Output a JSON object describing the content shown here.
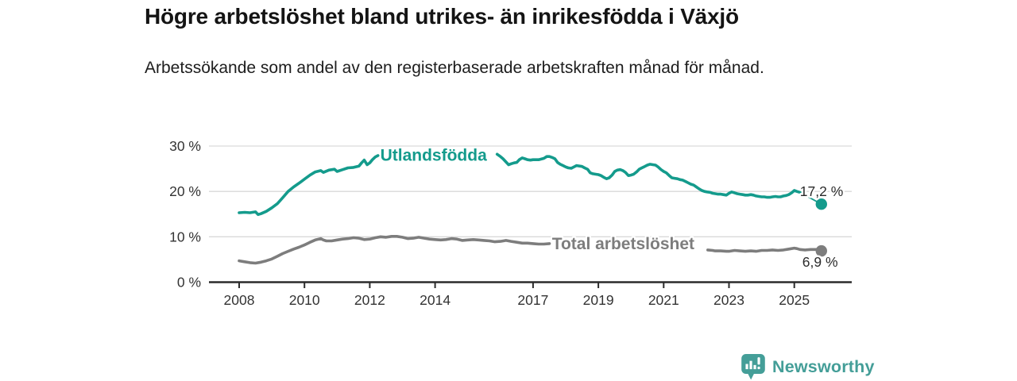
{
  "header": {
    "title": "Högre arbetslöshet bland utrikes- än inrikesfödda i Växjö",
    "subtitle": "Arbetssökande som andel av den registerbaserade arbetskraften månad för månad."
  },
  "footer": {
    "brand": "Newsworthy",
    "brand_icon": "bar-chart-speech-bubble-icon"
  },
  "colors": {
    "teal": "#149b8c",
    "gray": "#7d7d7d",
    "grid": "#d9d9d9",
    "axis": "#2b2b2b",
    "tick_text": "#333333",
    "value_text": "#2b2b2b",
    "brand_teal": "#449e98",
    "background": "#ffffff"
  },
  "chart_data": {
    "type": "line",
    "title": "Högre arbetslöshet bland utrikes- än inrikesfödda i Växjö",
    "subtitle": "Arbetssökande som andel av den registerbaserade arbetskraften månad för månad.",
    "unit": "%",
    "grid": "horizontal",
    "legend_position": "inline-labels",
    "x_axis": {
      "range": [
        2007.7,
        2026.2
      ],
      "ticks": [
        2008,
        2010,
        2012,
        2014,
        2017,
        2019,
        2021,
        2023,
        2025
      ]
    },
    "y_axis": {
      "range": [
        0,
        30
      ],
      "ticks": [
        0,
        10,
        20,
        30
      ],
      "tick_format": "{v} %"
    },
    "series": [
      {
        "id": "utlandsfodda",
        "name": "Utlandsfödda",
        "color_key": "teal",
        "label_anchor": [
          2012.32,
          28.05
        ],
        "end_x": 2025.83,
        "end_value": 17.2,
        "end_label": "17,2 %",
        "end_label_pos": "above",
        "connector": [
          [
            2025.25,
            19.5
          ],
          [
            2025.83,
            17.2
          ]
        ],
        "segments": [
          [
            [
              2008.0,
              15.3
            ],
            [
              2008.17,
              15.4
            ],
            [
              2008.33,
              15.3
            ],
            [
              2008.5,
              15.5
            ],
            [
              2008.58,
              14.9
            ],
            [
              2008.67,
              15.1
            ],
            [
              2008.83,
              15.6
            ],
            [
              2009.0,
              16.4
            ],
            [
              2009.17,
              17.3
            ],
            [
              2009.33,
              18.6
            ],
            [
              2009.5,
              20.0
            ],
            [
              2009.67,
              21.0
            ],
            [
              2009.83,
              21.8
            ],
            [
              2010.0,
              22.7
            ],
            [
              2010.17,
              23.6
            ],
            [
              2010.33,
              24.3
            ],
            [
              2010.5,
              24.6
            ],
            [
              2010.58,
              24.2
            ],
            [
              2010.75,
              24.7
            ],
            [
              2010.92,
              24.9
            ],
            [
              2011.0,
              24.4
            ],
            [
              2011.17,
              24.8
            ],
            [
              2011.33,
              25.2
            ],
            [
              2011.5,
              25.3
            ],
            [
              2011.67,
              25.6
            ],
            [
              2011.75,
              26.3
            ],
            [
              2011.83,
              26.9
            ],
            [
              2011.92,
              25.9
            ],
            [
              2012.0,
              26.3
            ],
            [
              2012.08,
              27.0
            ],
            [
              2012.17,
              27.6
            ],
            [
              2012.25,
              27.9
            ]
          ],
          [
            [
              2015.9,
              28.2
            ],
            [
              2016.0,
              27.7
            ],
            [
              2016.08,
              27.2
            ],
            [
              2016.17,
              26.5
            ],
            [
              2016.25,
              25.9
            ],
            [
              2016.33,
              26.1
            ],
            [
              2016.42,
              26.3
            ],
            [
              2016.5,
              26.4
            ],
            [
              2016.58,
              27.0
            ],
            [
              2016.67,
              27.4
            ],
            [
              2016.75,
              27.2
            ],
            [
              2016.83,
              27.0
            ],
            [
              2016.92,
              26.9
            ],
            [
              2017.0,
              27.0
            ],
            [
              2017.17,
              27.0
            ],
            [
              2017.33,
              27.3
            ],
            [
              2017.42,
              27.7
            ],
            [
              2017.5,
              27.7
            ],
            [
              2017.58,
              27.5
            ],
            [
              2017.67,
              27.2
            ],
            [
              2017.75,
              26.4
            ],
            [
              2017.83,
              26.0
            ],
            [
              2017.92,
              25.7
            ],
            [
              2018.0,
              25.4
            ],
            [
              2018.08,
              25.2
            ],
            [
              2018.17,
              25.1
            ],
            [
              2018.25,
              25.4
            ],
            [
              2018.33,
              25.7
            ],
            [
              2018.42,
              25.6
            ],
            [
              2018.5,
              25.5
            ],
            [
              2018.58,
              25.2
            ],
            [
              2018.67,
              24.9
            ],
            [
              2018.75,
              24.1
            ],
            [
              2018.83,
              23.9
            ],
            [
              2018.92,
              23.8
            ],
            [
              2019.0,
              23.7
            ],
            [
              2019.08,
              23.5
            ],
            [
              2019.17,
              23.1
            ],
            [
              2019.25,
              22.8
            ],
            [
              2019.33,
              23.0
            ],
            [
              2019.42,
              23.6
            ],
            [
              2019.5,
              24.4
            ],
            [
              2019.58,
              24.7
            ],
            [
              2019.67,
              24.8
            ],
            [
              2019.75,
              24.6
            ],
            [
              2019.83,
              24.2
            ],
            [
              2019.92,
              23.5
            ],
            [
              2020.0,
              23.6
            ],
            [
              2020.08,
              23.8
            ],
            [
              2020.17,
              24.3
            ],
            [
              2020.25,
              24.9
            ],
            [
              2020.33,
              25.2
            ],
            [
              2020.42,
              25.5
            ],
            [
              2020.5,
              25.8
            ],
            [
              2020.58,
              26.0
            ],
            [
              2020.67,
              25.9
            ],
            [
              2020.75,
              25.8
            ],
            [
              2020.83,
              25.4
            ],
            [
              2020.92,
              24.8
            ],
            [
              2021.0,
              24.4
            ],
            [
              2021.08,
              24.1
            ],
            [
              2021.17,
              23.5
            ],
            [
              2021.25,
              23.0
            ],
            [
              2021.33,
              22.9
            ],
            [
              2021.42,
              22.8
            ],
            [
              2021.5,
              22.6
            ],
            [
              2021.58,
              22.5
            ],
            [
              2021.67,
              22.2
            ],
            [
              2021.75,
              21.9
            ],
            [
              2021.83,
              21.6
            ],
            [
              2021.92,
              21.4
            ],
            [
              2022.0,
              21.0
            ],
            [
              2022.08,
              20.6
            ],
            [
              2022.17,
              20.2
            ],
            [
              2022.25,
              20.0
            ],
            [
              2022.33,
              19.9
            ],
            [
              2022.42,
              19.8
            ],
            [
              2022.5,
              19.6
            ],
            [
              2022.58,
              19.5
            ],
            [
              2022.67,
              19.4
            ],
            [
              2022.75,
              19.4
            ],
            [
              2022.83,
              19.3
            ],
            [
              2022.92,
              19.2
            ],
            [
              2023.0,
              19.6
            ],
            [
              2023.08,
              19.9
            ],
            [
              2023.17,
              19.7
            ],
            [
              2023.25,
              19.5
            ],
            [
              2023.33,
              19.4
            ],
            [
              2023.42,
              19.3
            ],
            [
              2023.5,
              19.2
            ],
            [
              2023.58,
              19.2
            ],
            [
              2023.67,
              19.3
            ],
            [
              2023.75,
              19.2
            ],
            [
              2023.83,
              19.0
            ],
            [
              2023.92,
              18.9
            ],
            [
              2024.0,
              18.8
            ],
            [
              2024.08,
              18.8
            ],
            [
              2024.17,
              18.7
            ],
            [
              2024.25,
              18.7
            ],
            [
              2024.33,
              18.8
            ],
            [
              2024.42,
              18.9
            ],
            [
              2024.5,
              18.8
            ],
            [
              2024.58,
              18.8
            ],
            [
              2024.67,
              19.0
            ],
            [
              2024.75,
              19.1
            ],
            [
              2024.83,
              19.3
            ],
            [
              2024.92,
              19.7
            ],
            [
              2025.0,
              20.2
            ],
            [
              2025.08,
              20.0
            ],
            [
              2025.17,
              19.8
            ],
            [
              2025.25,
              19.5
            ]
          ]
        ]
      },
      {
        "id": "total-arbetsloshet",
        "name": "Total arbetslöshet",
        "color_key": "gray",
        "label_anchor": [
          2017.58,
          8.55
        ],
        "end_x": 2025.83,
        "end_value": 6.9,
        "end_label": "6,9 %",
        "end_label_pos": "below",
        "connector": null,
        "segments": [
          [
            [
              2008.0,
              4.7
            ],
            [
              2008.17,
              4.5
            ],
            [
              2008.33,
              4.3
            ],
            [
              2008.5,
              4.2
            ],
            [
              2008.67,
              4.4
            ],
            [
              2008.83,
              4.7
            ],
            [
              2009.0,
              5.1
            ],
            [
              2009.17,
              5.7
            ],
            [
              2009.33,
              6.3
            ],
            [
              2009.5,
              6.8
            ],
            [
              2009.67,
              7.3
            ],
            [
              2009.83,
              7.7
            ],
            [
              2010.0,
              8.2
            ],
            [
              2010.17,
              8.8
            ],
            [
              2010.33,
              9.3
            ],
            [
              2010.5,
              9.6
            ],
            [
              2010.58,
              9.3
            ],
            [
              2010.67,
              9.1
            ],
            [
              2010.83,
              9.1
            ],
            [
              2011.0,
              9.3
            ],
            [
              2011.17,
              9.5
            ],
            [
              2011.33,
              9.6
            ],
            [
              2011.5,
              9.8
            ],
            [
              2011.67,
              9.7
            ],
            [
              2011.83,
              9.4
            ],
            [
              2012.0,
              9.5
            ],
            [
              2012.17,
              9.8
            ],
            [
              2012.33,
              10.0
            ],
            [
              2012.5,
              9.9
            ],
            [
              2012.67,
              10.1
            ],
            [
              2012.83,
              10.1
            ],
            [
              2013.0,
              9.9
            ],
            [
              2013.17,
              9.6
            ],
            [
              2013.33,
              9.7
            ],
            [
              2013.5,
              9.9
            ],
            [
              2013.67,
              9.7
            ],
            [
              2013.83,
              9.5
            ],
            [
              2014.0,
              9.4
            ],
            [
              2014.17,
              9.3
            ],
            [
              2014.33,
              9.4
            ],
            [
              2014.5,
              9.6
            ],
            [
              2014.67,
              9.5
            ],
            [
              2014.83,
              9.2
            ],
            [
              2015.0,
              9.3
            ],
            [
              2015.17,
              9.4
            ],
            [
              2015.33,
              9.3
            ],
            [
              2015.5,
              9.2
            ],
            [
              2015.67,
              9.1
            ],
            [
              2015.83,
              8.9
            ],
            [
              2016.0,
              9.0
            ],
            [
              2016.17,
              9.2
            ],
            [
              2016.33,
              9.0
            ],
            [
              2016.5,
              8.8
            ],
            [
              2016.67,
              8.6
            ],
            [
              2016.83,
              8.6
            ],
            [
              2017.0,
              8.5
            ],
            [
              2017.17,
              8.4
            ],
            [
              2017.33,
              8.4
            ],
            [
              2017.5,
              8.5
            ]
          ],
          [
            [
              2022.35,
              7.1
            ],
            [
              2022.5,
              7.0
            ],
            [
              2022.58,
              6.9
            ],
            [
              2022.75,
              6.9
            ],
            [
              2022.92,
              6.8
            ],
            [
              2023.0,
              6.8
            ],
            [
              2023.17,
              7.0
            ],
            [
              2023.33,
              6.9
            ],
            [
              2023.5,
              6.8
            ],
            [
              2023.67,
              6.9
            ],
            [
              2023.83,
              6.8
            ],
            [
              2024.0,
              7.0
            ],
            [
              2024.17,
              7.0
            ],
            [
              2024.33,
              7.1
            ],
            [
              2024.5,
              7.0
            ],
            [
              2024.67,
              7.1
            ],
            [
              2024.83,
              7.3
            ],
            [
              2025.0,
              7.5
            ],
            [
              2025.08,
              7.4
            ],
            [
              2025.17,
              7.2
            ],
            [
              2025.33,
              7.1
            ],
            [
              2025.5,
              7.2
            ],
            [
              2025.67,
              7.2
            ],
            [
              2025.83,
              6.9
            ]
          ]
        ]
      }
    ]
  }
}
